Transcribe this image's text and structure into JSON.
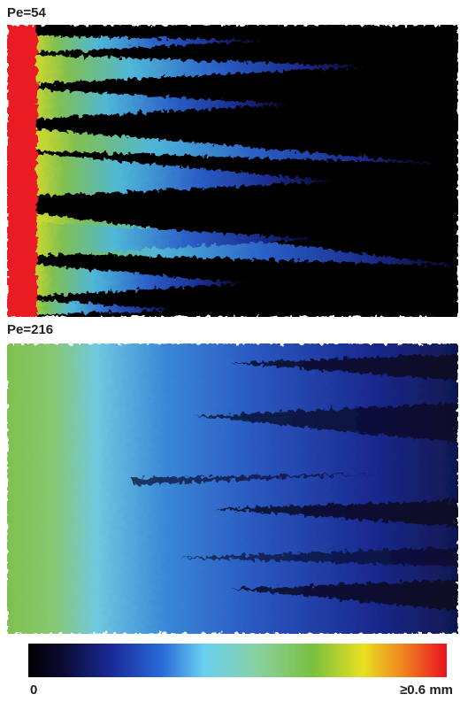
{
  "panels": [
    {
      "label": "Pe=54"
    },
    {
      "label": "Pe=216"
    }
  ],
  "colorbar": {
    "min_label": "0",
    "max_label": "≥0.6 mm"
  }
}
